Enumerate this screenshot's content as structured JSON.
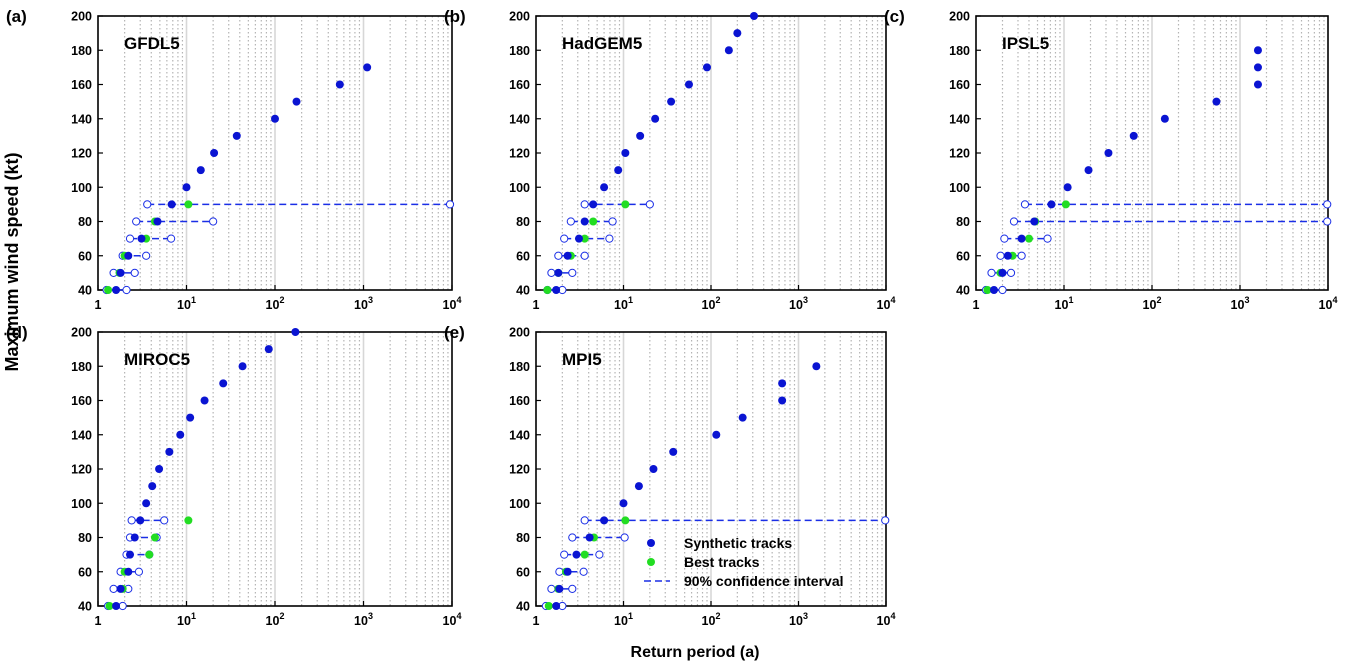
{
  "figure": {
    "ylabel": "Maximum wind speed (kt)",
    "xlabel": "Return period (a)"
  },
  "legend": {
    "synthetic": "Synthetic tracks",
    "best": "Best tracks",
    "ci": "90% confidence interval"
  },
  "colors": {
    "synthetic": "#0a14d2",
    "best": "#22dd22",
    "ci": "#1a2ee6",
    "grid_minor": "#b4b4b4",
    "grid_major": "#d7d7d7"
  },
  "axes": {
    "xscale": "log",
    "xlim": [
      1,
      10000
    ],
    "ylim": [
      40,
      200
    ],
    "yticks": [
      40,
      60,
      80,
      100,
      120,
      140,
      160,
      180,
      200
    ],
    "xticks": [
      {
        "base": "1",
        "exp": ""
      },
      {
        "base": "10",
        "exp": "1"
      },
      {
        "base": "10",
        "exp": "2"
      },
      {
        "base": "10",
        "exp": "3"
      },
      {
        "base": "10",
        "exp": "4"
      }
    ],
    "grid": "x-axis dotted minor and major lines"
  },
  "chart_data": [
    {
      "type": "scatter",
      "panel": "(a)",
      "title": "GFDL5",
      "series": [
        {
          "name": "Synthetic tracks",
          "points": [
            [
              1.6,
              40
            ],
            [
              1.8,
              50
            ],
            [
              2.2,
              60
            ],
            [
              3.1,
              70
            ],
            [
              4.7,
              80
            ],
            [
              6.8,
              90
            ],
            [
              10,
              100
            ],
            [
              14.5,
              110
            ],
            [
              20.5,
              120
            ],
            [
              37,
              130
            ],
            [
              100,
              140
            ],
            [
              175,
              150
            ],
            [
              540,
              160
            ],
            [
              1100,
              170
            ]
          ]
        },
        {
          "name": "Best tracks",
          "points": [
            [
              1.3,
              40
            ],
            [
              1.75,
              50
            ],
            [
              2.0,
              60
            ],
            [
              3.5,
              70
            ],
            [
              4.4,
              80
            ],
            [
              10.5,
              90
            ]
          ]
        }
      ],
      "confidence_intervals": [
        [
          40,
          1.25,
          2.1
        ],
        [
          50,
          1.5,
          2.6
        ],
        [
          60,
          1.9,
          3.5
        ],
        [
          70,
          2.3,
          6.7
        ],
        [
          80,
          2.7,
          20
        ],
        [
          90,
          3.6,
          9500
        ]
      ]
    },
    {
      "type": "scatter",
      "panel": "(b)",
      "title": "HadGEM5",
      "series": [
        {
          "name": "Synthetic tracks",
          "points": [
            [
              1.7,
              40
            ],
            [
              1.8,
              50
            ],
            [
              2.3,
              60
            ],
            [
              3.1,
              70
            ],
            [
              3.6,
              80
            ],
            [
              4.5,
              90
            ],
            [
              8.7,
              110
            ],
            [
              10.5,
              120
            ],
            [
              15.5,
              130
            ],
            [
              23,
              140
            ],
            [
              35,
              150
            ],
            [
              56,
              160
            ],
            [
              90,
              170
            ],
            [
              160,
              180
            ],
            [
              200,
              190
            ],
            [
              310,
              200
            ]
          ]
        },
        {
          "name": "Best tracks",
          "points": [
            [
              1.35,
              40
            ],
            [
              1.8,
              50
            ],
            [
              2.5,
              60
            ],
            [
              3.6,
              70
            ],
            [
              4.5,
              80
            ],
            [
              10.5,
              90
            ]
          ]
        },
        {
          "name": "Synthetic tracks",
          "points": [
            [
              6,
              100
            ]
          ]
        }
      ],
      "confidence_intervals": [
        [
          40,
          1.35,
          2.0
        ],
        [
          50,
          1.5,
          2.6
        ],
        [
          60,
          1.8,
          3.6
        ],
        [
          70,
          2.1,
          6.9
        ],
        [
          80,
          2.5,
          7.5
        ],
        [
          90,
          3.6,
          20
        ]
      ]
    },
    {
      "type": "scatter",
      "panel": "(c)",
      "title": "IPSL5",
      "series": [
        {
          "name": "Synthetic tracks",
          "points": [
            [
              1.6,
              40
            ],
            [
              2.0,
              50
            ],
            [
              2.3,
              60
            ],
            [
              3.3,
              70
            ],
            [
              4.6,
              80
            ],
            [
              7.2,
              90
            ],
            [
              11,
              100
            ],
            [
              19,
              110
            ],
            [
              32,
              120
            ],
            [
              140,
              140
            ],
            [
              540,
              150
            ],
            [
              62,
              130
            ],
            [
              1600,
              160
            ],
            [
              1600,
              170
            ],
            [
              1600,
              180
            ]
          ]
        },
        {
          "name": "Best tracks",
          "points": [
            [
              1.35,
              40
            ],
            [
              1.9,
              50
            ],
            [
              2.6,
              60
            ],
            [
              4.0,
              70
            ],
            [
              4.7,
              80
            ],
            [
              10.5,
              90
            ]
          ]
        }
      ],
      "confidence_intervals": [
        [
          40,
          1.3,
          2.0
        ],
        [
          50,
          1.5,
          2.5
        ],
        [
          60,
          1.9,
          3.3
        ],
        [
          70,
          2.1,
          6.5
        ],
        [
          80,
          2.7,
          9800
        ],
        [
          90,
          3.6,
          9800
        ]
      ]
    },
    {
      "type": "scatter",
      "panel": "(d)",
      "title": "MIROC5",
      "series": [
        {
          "name": "Synthetic tracks",
          "points": [
            [
              1.6,
              40
            ],
            [
              1.8,
              50
            ],
            [
              2.2,
              60
            ],
            [
              2.3,
              70
            ],
            [
              2.6,
              80
            ],
            [
              3.0,
              90
            ],
            [
              3.5,
              100
            ],
            [
              4.1,
              110
            ],
            [
              4.9,
              120
            ],
            [
              6.4,
              130
            ],
            [
              8.5,
              140
            ],
            [
              11,
              150
            ],
            [
              16,
              160
            ],
            [
              26,
              170
            ],
            [
              43,
              180
            ],
            [
              85,
              190
            ],
            [
              170,
              200
            ]
          ]
        },
        {
          "name": "Best tracks",
          "points": [
            [
              1.35,
              40
            ],
            [
              1.9,
              50
            ],
            [
              2.0,
              60
            ],
            [
              3.8,
              70
            ],
            [
              4.4,
              80
            ],
            [
              10.5,
              90
            ]
          ]
        }
      ],
      "confidence_intervals": [
        [
          40,
          1.3,
          1.9
        ],
        [
          50,
          1.5,
          2.2
        ],
        [
          60,
          1.8,
          2.9
        ],
        [
          70,
          2.1,
          3.8
        ],
        [
          80,
          2.3,
          4.6
        ],
        [
          90,
          2.4,
          5.6
        ]
      ]
    },
    {
      "type": "scatter",
      "panel": "(e)",
      "title": "MPI5",
      "series": [
        {
          "name": "Synthetic tracks",
          "points": [
            [
              1.7,
              40
            ],
            [
              1.85,
              50
            ],
            [
              2.3,
              60
            ],
            [
              2.9,
              70
            ],
            [
              4.1,
              80
            ],
            [
              6,
              90
            ],
            [
              10,
              100
            ],
            [
              15,
              110
            ],
            [
              22,
              120
            ],
            [
              37,
              130
            ],
            [
              115,
              140
            ],
            [
              230,
              150
            ],
            [
              650,
              160
            ],
            [
              650,
              170
            ],
            [
              1600,
              180
            ]
          ]
        },
        {
          "name": "Best tracks",
          "points": [
            [
              1.4,
              40
            ],
            [
              1.8,
              50
            ],
            [
              2.2,
              60
            ],
            [
              3.6,
              70
            ],
            [
              4.6,
              80
            ],
            [
              10.5,
              90
            ]
          ]
        }
      ],
      "confidence_intervals": [
        [
          40,
          1.3,
          2.0
        ],
        [
          50,
          1.5,
          2.6
        ],
        [
          60,
          1.85,
          3.5
        ],
        [
          70,
          2.1,
          5.3
        ],
        [
          80,
          2.6,
          10.3
        ],
        [
          90,
          3.6,
          9800
        ]
      ]
    }
  ]
}
